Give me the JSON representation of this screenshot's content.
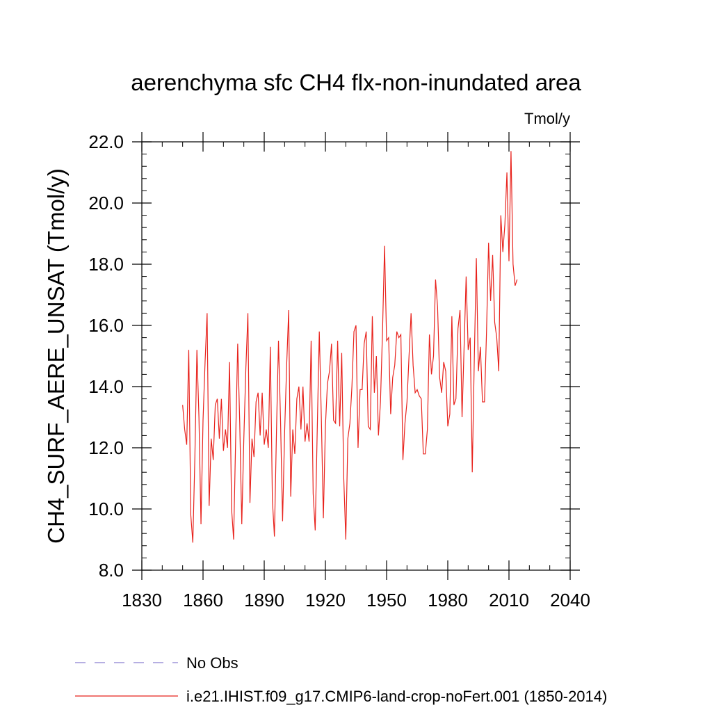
{
  "chart_data": {
    "type": "line",
    "title": "aerenchyma sfc CH4 flx-non-inundated area",
    "units_label": "Tmol/y",
    "ylabel": "CH4_SURF_AERE_UNSAT  (Tmol/y)",
    "xlabel": "",
    "xlim": [
      1830,
      2040
    ],
    "ylim": [
      8.0,
      22.0
    ],
    "x_ticks": [
      1830,
      1860,
      1890,
      1920,
      1950,
      1980,
      2010,
      2040
    ],
    "x_tick_labels": [
      "1830",
      "1860",
      "1890",
      "1920",
      "1950",
      "1980",
      "2010",
      "2040"
    ],
    "y_ticks": [
      8.0,
      10.0,
      12.0,
      14.0,
      16.0,
      18.0,
      20.0,
      22.0
    ],
    "y_tick_labels": [
      "8.0",
      "10.0",
      "12.0",
      "14.0",
      "16.0",
      "18.0",
      "20.0",
      "22.0"
    ],
    "grid": false,
    "legend_placement": "bottom-left",
    "legend": [
      {
        "label": "No Obs",
        "color": "#8a7fd0",
        "style": "dashed"
      },
      {
        "label": "i.e21.IHIST.f09_g17.CMIP6-land-crop-noFert.001 (1850-2014)",
        "color": "#e8231d",
        "style": "solid"
      }
    ],
    "series": [
      {
        "name": "i.e21.IHIST.f09_g17.CMIP6-land-crop-noFert.001 (1850-2014)",
        "color": "#e8231d",
        "x_start": 1850,
        "x_step": 1,
        "values": [
          13.4,
          12.6,
          12.1,
          15.2,
          9.8,
          8.9,
          11.7,
          15.2,
          13.0,
          9.5,
          12.9,
          14.8,
          16.4,
          10.1,
          12.3,
          11.6,
          13.4,
          13.6,
          12.3,
          13.6,
          11.9,
          12.6,
          12.0,
          14.8,
          10.0,
          9.0,
          12.3,
          15.4,
          12.8,
          9.5,
          12.3,
          14.6,
          16.4,
          10.2,
          12.3,
          11.7,
          13.5,
          13.8,
          12.4,
          13.8,
          12.1,
          12.6,
          12.0,
          15.3,
          10.3,
          9.1,
          12.5,
          15.5,
          12.9,
          9.6,
          12.5,
          14.7,
          16.5,
          10.4,
          12.6,
          11.8,
          13.6,
          14.0,
          12.6,
          14.0,
          12.2,
          12.8,
          12.2,
          15.5,
          10.5,
          9.3,
          12.6,
          15.8,
          13.0,
          9.7,
          12.7,
          14.1,
          14.5,
          15.4,
          12.9,
          12.8,
          15.5,
          12.7,
          15.1,
          11.0,
          9.0,
          12.3,
          12.8,
          14.0,
          15.8,
          16.0,
          12.0,
          13.9,
          13.9,
          15.4,
          15.8,
          12.7,
          12.6,
          16.3,
          13.8,
          15.0,
          12.4,
          13.5,
          15.8,
          18.6,
          15.5,
          15.6,
          13.1,
          14.3,
          14.7,
          15.8,
          15.6,
          15.7,
          11.6,
          12.8,
          13.5,
          15.0,
          16.4,
          14.7,
          13.8,
          13.9,
          13.7,
          13.6,
          11.8,
          11.8,
          12.6,
          15.7,
          14.4,
          15.0,
          17.5,
          16.6,
          14.3,
          13.8,
          14.8,
          14.5,
          12.7,
          13.1,
          16.3,
          13.4,
          13.6,
          15.9,
          16.5,
          13.0,
          15.3,
          17.6,
          15.2,
          15.6,
          11.2,
          14.9,
          18.2,
          14.5,
          15.3,
          13.5,
          13.5,
          15.8,
          18.7,
          16.8,
          18.3,
          16.1,
          15.6,
          14.5,
          19.6,
          18.4,
          19.3,
          21.0,
          18.1,
          21.7,
          18.0,
          17.3,
          17.5
        ]
      }
    ]
  }
}
